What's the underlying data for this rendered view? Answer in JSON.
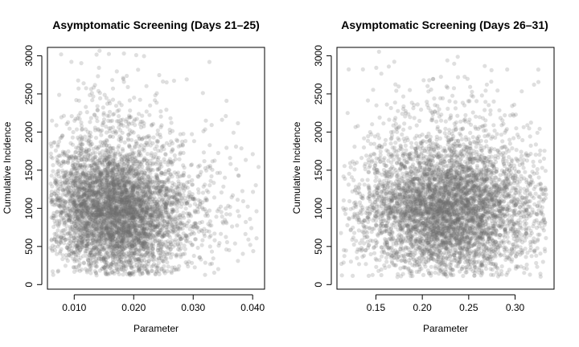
{
  "chart_data": [
    {
      "type": "scatter",
      "title": "Asymptomatic Screening (Days 21–25)",
      "xlabel": "Parameter",
      "ylabel": "Cumulative Incidence",
      "xlim": [
        0.0055,
        0.042
      ],
      "ylim": [
        -60,
        3110
      ],
      "xticks": [
        0.01,
        0.02,
        0.03,
        0.04
      ],
      "xtick_labels": [
        "0.010",
        "0.020",
        "0.030",
        "0.040"
      ],
      "yticks": [
        0,
        500,
        1000,
        1500,
        2000,
        2500,
        3000
      ],
      "ytick_labels": [
        "0",
        "500",
        "1000",
        "1500",
        "2000",
        "2500",
        "3000"
      ],
      "point_color": "#6e6e6e",
      "point_opacity": 0.22,
      "n_points": 5000,
      "distribution": {
        "x_center": 0.0165,
        "x_spread": 0.0058,
        "x_min": 0.006,
        "x_max": 0.041,
        "y_center": 900,
        "y_spread": 430,
        "y_min": 120,
        "y_max": 3070,
        "correlation": -0.15
      }
    },
    {
      "type": "scatter",
      "title": "Asymptomatic Screening (Days 26–31)",
      "xlabel": "Parameter",
      "ylabel": "Cumulative Incidence",
      "xlim": [
        0.108,
        0.342
      ],
      "ylim": [
        -60,
        3110
      ],
      "xticks": [
        0.15,
        0.2,
        0.25,
        0.3
      ],
      "xtick_labels": [
        "0.15",
        "0.20",
        "0.25",
        "0.30"
      ],
      "yticks": [
        0,
        500,
        1000,
        1500,
        2000,
        2500,
        3000
      ],
      "ytick_labels": [
        "0",
        "500",
        "1000",
        "1500",
        "2000",
        "2500",
        "3000"
      ],
      "point_color": "#6e6e6e",
      "point_opacity": 0.22,
      "n_points": 5000,
      "distribution": {
        "x_center": 0.222,
        "x_spread": 0.045,
        "x_min": 0.112,
        "x_max": 0.334,
        "y_center": 920,
        "y_spread": 440,
        "y_min": 100,
        "y_max": 3060,
        "correlation": 0.0
      }
    }
  ]
}
